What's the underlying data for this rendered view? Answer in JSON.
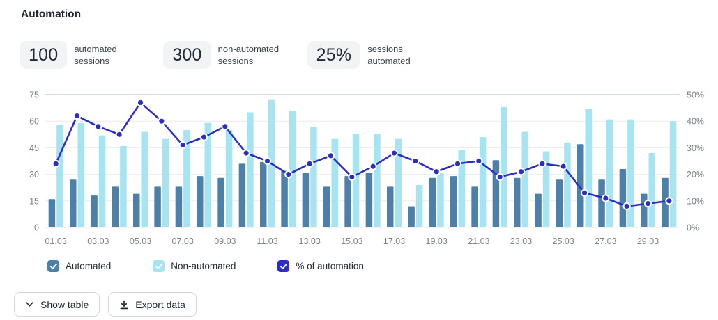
{
  "header": {
    "title": "Automation"
  },
  "stats": [
    {
      "value": "100",
      "label": "automated sessions"
    },
    {
      "value": "300",
      "label": "non-automated sessions"
    },
    {
      "value": "25%",
      "label": "sessions automated"
    }
  ],
  "chart_data": {
    "type": "bar+line",
    "categories": [
      "01.03",
      "02.03",
      "03.03",
      "04.03",
      "05.03",
      "06.03",
      "07.03",
      "08.03",
      "09.03",
      "10.03",
      "11.03",
      "12.03",
      "13.03",
      "14.03",
      "15.03",
      "16.03",
      "17.03",
      "18.03",
      "19.03",
      "20.03",
      "21.03",
      "22.03",
      "23.03",
      "24.03",
      "25.03",
      "26.03",
      "27.03",
      "28.03",
      "29.03",
      "30.03"
    ],
    "x_tick_labels": [
      "01.03",
      "03.03",
      "05.03",
      "07.03",
      "09.03",
      "11.03",
      "13.03",
      "15.03",
      "17.03",
      "19.03",
      "21.03",
      "23.03",
      "25.03",
      "27.03",
      "29.03"
    ],
    "label_every": 2,
    "series": [
      {
        "name": "Automated",
        "type": "bar",
        "axis": "left",
        "color": "#4c80a8",
        "values": [
          16,
          27,
          18,
          23,
          19,
          23,
          23,
          29,
          28,
          36,
          37,
          32,
          31,
          23,
          29,
          31,
          23,
          12,
          28,
          29,
          23,
          38,
          28,
          19,
          27,
          47,
          27,
          33,
          19,
          28
        ]
      },
      {
        "name": "Non-automated",
        "type": "bar",
        "axis": "left",
        "color": "#a6e4f2",
        "values": [
          58,
          59,
          52,
          46,
          54,
          50,
          55,
          59,
          55,
          65,
          72,
          66,
          57,
          50,
          53,
          53,
          50,
          24,
          31,
          44,
          51,
          68,
          54,
          43,
          48,
          67,
          61,
          61,
          42,
          60
        ]
      },
      {
        "name": "% of automation",
        "type": "line",
        "axis": "right",
        "color": "#2b2ec6",
        "values": [
          24,
          42,
          38,
          35,
          47,
          40,
          31,
          34,
          38,
          28,
          25,
          20,
          24,
          27,
          19,
          23,
          28,
          25,
          21,
          24,
          25,
          19,
          21,
          24,
          23,
          13,
          11,
          8,
          9,
          10
        ]
      }
    ],
    "y_left": {
      "ticks": [
        0,
        15,
        30,
        45,
        60,
        75
      ],
      "lim": [
        0,
        75
      ]
    },
    "y_right": {
      "ticks": [
        "0%",
        "10%",
        "20%",
        "30%",
        "40%",
        "50%"
      ],
      "lim": [
        0,
        50
      ]
    },
    "grid": true,
    "legend_position": "bottom"
  },
  "legend": [
    {
      "label": "Automated",
      "color": "#4c80a8",
      "checked": true
    },
    {
      "label": "Non-automated",
      "color": "#a6e4f2",
      "checked": true
    },
    {
      "label": "% of automation",
      "color": "#2b2ec6",
      "checked": true
    }
  ],
  "actions": {
    "show_table": "Show table",
    "export_data": "Export data"
  },
  "colors": {
    "automated": "#4c80a8",
    "non_automated": "#a6e4f2",
    "automation_line": "#2b2ec6",
    "grid": "#e9ebee",
    "grid_top": "#b3b9c0",
    "tick_text": "#7b828c"
  }
}
